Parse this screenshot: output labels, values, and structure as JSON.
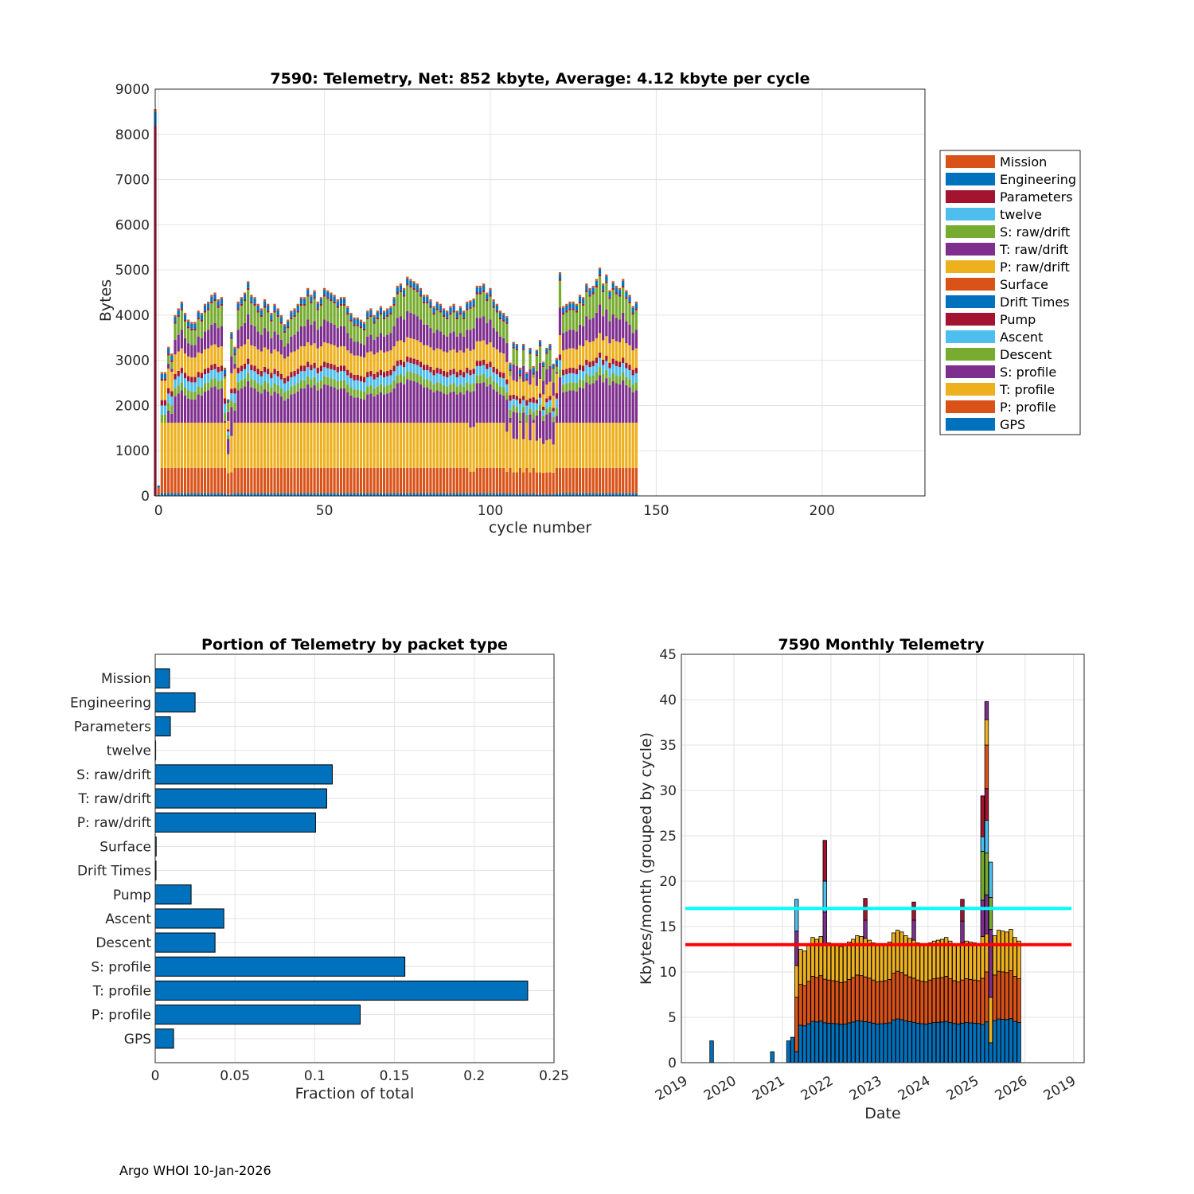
{
  "footer": "Argo WHOI 10-Jan-2026",
  "colors": {
    "GPS": "#0072bd",
    "P: profile": "#d95319",
    "T: profile": "#edb120",
    "S: profile": "#7e2f8e",
    "Descent": "#77ac30",
    "Ascent": "#4dbeee",
    "Pump": "#a2142f",
    "Drift Times": "#0072bd",
    "Surface": "#d95319",
    "P: raw/drift": "#edb120",
    "T: raw/drift": "#7e2f8e",
    "S: raw/drift": "#77ac30",
    "twelve": "#4dbeee",
    "Parameters": "#a2142f",
    "Engineering": "#0072bd",
    "Mission": "#d95319",
    "threshold_cyan": "#00ffff",
    "threshold_red": "#ff0000"
  },
  "chart_data": [
    {
      "id": "cycle",
      "type": "bar",
      "stacked": true,
      "title": "7590: Telemetry, Net:    852 kbyte,  Average: 4.12 kbyte per cycle",
      "xlabel": "cycle number",
      "ylabel": "Bytes",
      "xlim": [
        -1,
        231
      ],
      "ylim": [
        0,
        9000
      ],
      "xticks": [
        0,
        50,
        100,
        150,
        200
      ],
      "yticks": [
        0,
        1000,
        2000,
        3000,
        4000,
        5000,
        6000,
        7000,
        8000,
        9000
      ],
      "grid": true,
      "legend_position": "outside-right",
      "legend": [
        "Mission",
        "Engineering",
        "Parameters",
        "twelve",
        "S: raw/drift",
        "T: raw/drift",
        "P: raw/drift",
        "Surface",
        "Drift Times",
        "Pump",
        "Ascent",
        "Descent",
        "S: profile",
        "T: profile",
        "P: profile",
        "GPS"
      ],
      "stack_order": [
        "GPS",
        "P: profile",
        "T: profile",
        "S: profile",
        "Descent",
        "Ascent",
        "Pump",
        "Drift Times",
        "Surface",
        "P: raw/drift",
        "T: raw/drift",
        "S: raw/drift",
        "twelve",
        "Parameters",
        "Engineering",
        "Mission"
      ],
      "first_cycle": -1,
      "special_cycles": [
        {
          "cycle": -1,
          "values": [
            0,
            0,
            0,
            0,
            0,
            0,
            0,
            0,
            0,
            0,
            0,
            0,
            0,
            8200,
            300,
            60
          ]
        },
        {
          "cycle": 0,
          "values": [
            30,
            150,
            0,
            0,
            0,
            0,
            0,
            0,
            0,
            0,
            0,
            0,
            0,
            0,
            50,
            0
          ]
        }
      ],
      "totals": [
        1250,
        2400,
        3300,
        3150,
        4000,
        4150,
        4300,
        4050,
        3900,
        3850,
        3850,
        4100,
        4050,
        4250,
        4300,
        4450,
        4500,
        4350,
        4400,
        2800,
        1900,
        3600,
        3300,
        4300,
        4400,
        4500,
        4750,
        4450,
        4400,
        4250,
        4150,
        4350,
        4250,
        4050,
        4250,
        4150,
        4000,
        3800,
        3900,
        4100,
        4150,
        4250,
        4400,
        4400,
        4600,
        4450,
        4550,
        4300,
        4400,
        4600,
        4550,
        4500,
        4450,
        4350,
        4400,
        4400,
        4200,
        4050,
        3950,
        3950,
        3900,
        3850,
        4100,
        4150,
        4000,
        4100,
        4200,
        4100,
        4150,
        4200,
        4400,
        4650,
        4700,
        4600,
        4850,
        4800,
        4750,
        4700,
        4600,
        4450,
        4450,
        4350,
        4200,
        4300,
        4250,
        4150,
        4100,
        4200,
        4250,
        4100,
        4200,
        4100,
        4300,
        4400,
        4450,
        4650,
        4650,
        4700,
        4500,
        4600,
        4350,
        4250,
        4100,
        4050,
        4000,
        2950,
        3350,
        3300,
        2800,
        3300,
        2500,
        3200,
        2850,
        3150,
        3400,
        2850,
        3200,
        3300,
        2800,
        3050,
        4950,
        4200,
        4250,
        4300,
        4300,
        4250,
        4450,
        4400,
        4700,
        4600,
        4650,
        4800,
        5050,
        4700,
        4900,
        4550,
        4750,
        4650,
        4600,
        4800,
        4550,
        4450,
        4200,
        4300
      ],
      "low_cycles": [
        20,
        21,
        93,
        94,
        104,
        106,
        107,
        109,
        111,
        113,
        114,
        115,
        116,
        117,
        118
      ],
      "base_segments": {
        "GPS": 60,
        "P: profile": 560,
        "T: profile": 1000,
        "S: profile": 800,
        "Descent": 180,
        "Ascent": 200,
        "Pump": 120,
        "Drift Times": 0,
        "Surface": 0,
        "P: raw/drift": 430,
        "T: raw/drift": 470,
        "S: raw/drift": 480,
        "twelve": 0,
        "Parameters": 40,
        "Engineering": 110,
        "Mission": 40
      }
    },
    {
      "id": "portion",
      "type": "barh",
      "title": "Portion of Telemetry by packet type",
      "xlabel": "Fraction of total",
      "xlim": [
        0,
        0.25
      ],
      "xticks": [
        0,
        0.05,
        0.1,
        0.15,
        0.2,
        0.25
      ],
      "xtick_labels": [
        "0",
        "0.05",
        "0.1",
        "0.15",
        "0.2",
        "0.25"
      ],
      "grid": true,
      "categories": [
        "Mission",
        "Engineering",
        "Parameters",
        "twelve",
        "S: raw/drift",
        "T: raw/drift",
        "P: raw/drift",
        "Surface",
        "Drift Times",
        "Pump",
        "Ascent",
        "Descent",
        "S: profile",
        "T: profile",
        "P: profile",
        "GPS"
      ],
      "values": [
        0.009,
        0.025,
        0.0095,
        0.0003,
        0.111,
        0.1075,
        0.1005,
        0.0006,
        0.0005,
        0.0225,
        0.043,
        0.0375,
        0.1565,
        0.2335,
        0.1285,
        0.0115
      ]
    },
    {
      "id": "monthly",
      "type": "bar",
      "stacked": true,
      "title": "7590 Monthly Telemetry",
      "xlabel": "Date",
      "ylabel": "Kbytes/month (grouped by cycle)",
      "ylim": [
        0,
        45
      ],
      "yticks": [
        0,
        5,
        10,
        15,
        20,
        25,
        30,
        35,
        40,
        45
      ],
      "xtick_labels": [
        "2019",
        "2020",
        "2021",
        "2022",
        "2023",
        "2024",
        "2025",
        "2026",
        "2019"
      ],
      "grid": true,
      "hlines": [
        {
          "value": 17,
          "color_key": "threshold_cyan"
        },
        {
          "value": 13,
          "color_key": "threshold_red"
        }
      ],
      "months_start": [
        2019,
        1
      ],
      "early_bars": [
        {
          "month_index": 6,
          "segments": [
            [
              "GPS",
              2.4
            ]
          ]
        },
        {
          "month_index": 21,
          "segments": [
            [
              "GPS",
              1.2
            ]
          ]
        },
        {
          "month_index": 25,
          "segments": [
            [
              "GPS",
              2.4
            ]
          ]
        },
        {
          "month_index": 26,
          "segments": [
            [
              "GPS",
              2.8
            ]
          ]
        },
        {
          "month_index": 27,
          "segments": [
            [
              "GPS",
              1.2
            ],
            [
              "P: profile",
              6.0
            ],
            [
              "T: profile",
              3.5
            ],
            [
              "S: profile",
              3.8
            ],
            [
              "Ascent",
              3.5
            ]
          ]
        }
      ],
      "regular_start_index": 28,
      "regular_totals": [
        12.5,
        12.3,
        13.0,
        13.8,
        13.6,
        13.9,
        14.0,
        13.2,
        13.1,
        13.0,
        12.8,
        12.9,
        13.3,
        13.6,
        14.0,
        13.9,
        13.7,
        13.5,
        13.2,
        12.9,
        13.0,
        13.1,
        13.3,
        14.3,
        14.6,
        14.4,
        14.0,
        13.7,
        13.5,
        13.2,
        13.0,
        12.9,
        13.2,
        13.4,
        13.5,
        13.6,
        13.8,
        13.4,
        13.1,
        12.9,
        13.2,
        13.4,
        13.3,
        13.2,
        13.1,
        13.6,
        13.3,
        13.5,
        14.0,
        14.6,
        14.5,
        14.4,
        14.7,
        13.8,
        13.4
      ],
      "regular_fractions": {
        "GPS": 0.33,
        "P: profile": 0.36,
        "T: profile": 0.31
      },
      "spikes": [
        {
          "month_index": 34,
          "segments": [
            [
              "GPS",
              4.4
            ],
            [
              "P: profile",
              4.8
            ],
            [
              "T: profile",
              3.9
            ],
            [
              "S: profile",
              3.5
            ],
            [
              "Ascent",
              3.4
            ],
            [
              "Pump",
              4.5
            ]
          ]
        },
        {
          "month_index": 44,
          "segments": [
            [
              "S: profile",
              2.0
            ],
            [
              "Pump",
              2.4
            ]
          ]
        },
        {
          "month_index": 56,
          "segments": [
            [
              "S: profile",
              2.2
            ],
            [
              "Pump",
              2.0
            ]
          ]
        },
        {
          "month_index": 68,
          "segments": [
            [
              "S: profile",
              2.4
            ],
            [
              "Pump",
              2.4
            ]
          ]
        },
        {
          "month_index": 73,
          "segments": [
            [
              "GPS",
              4.2
            ],
            [
              "P: profile",
              5.1
            ],
            [
              "T: profile",
              4.6
            ],
            [
              "S: profile",
              4.0
            ],
            [
              "Descent",
              5.4
            ],
            [
              "Ascent",
              1.6
            ],
            [
              "Pump",
              4.5
            ]
          ]
        },
        {
          "month_index": 74,
          "segments": [
            [
              "GPS",
              4.5
            ],
            [
              "P: profile",
              5.5
            ],
            [
              "T: profile",
              4.2
            ],
            [
              "S: profile",
              4.3
            ],
            [
              "Descent",
              4.6
            ],
            [
              "Ascent",
              3.6
            ],
            [
              "Pump",
              3.5
            ],
            [
              "Surface",
              4.8
            ],
            [
              "P: raw/drift",
              2.8
            ],
            [
              "T: raw/drift",
              2.0
            ]
          ]
        },
        {
          "month_index": 75,
          "segments": [
            [
              "GPS",
              2.2
            ],
            [
              "T: profile",
              5.0
            ],
            [
              "S: profile",
              7.5
            ],
            [
              "Descent",
              3.5
            ],
            [
              "Ascent",
              3.9
            ]
          ]
        },
        {
          "month_index": 84,
          "segments": [
            [
              "S: profile",
              2.5
            ],
            [
              "Pump",
              2.6
            ]
          ]
        }
      ]
    }
  ]
}
